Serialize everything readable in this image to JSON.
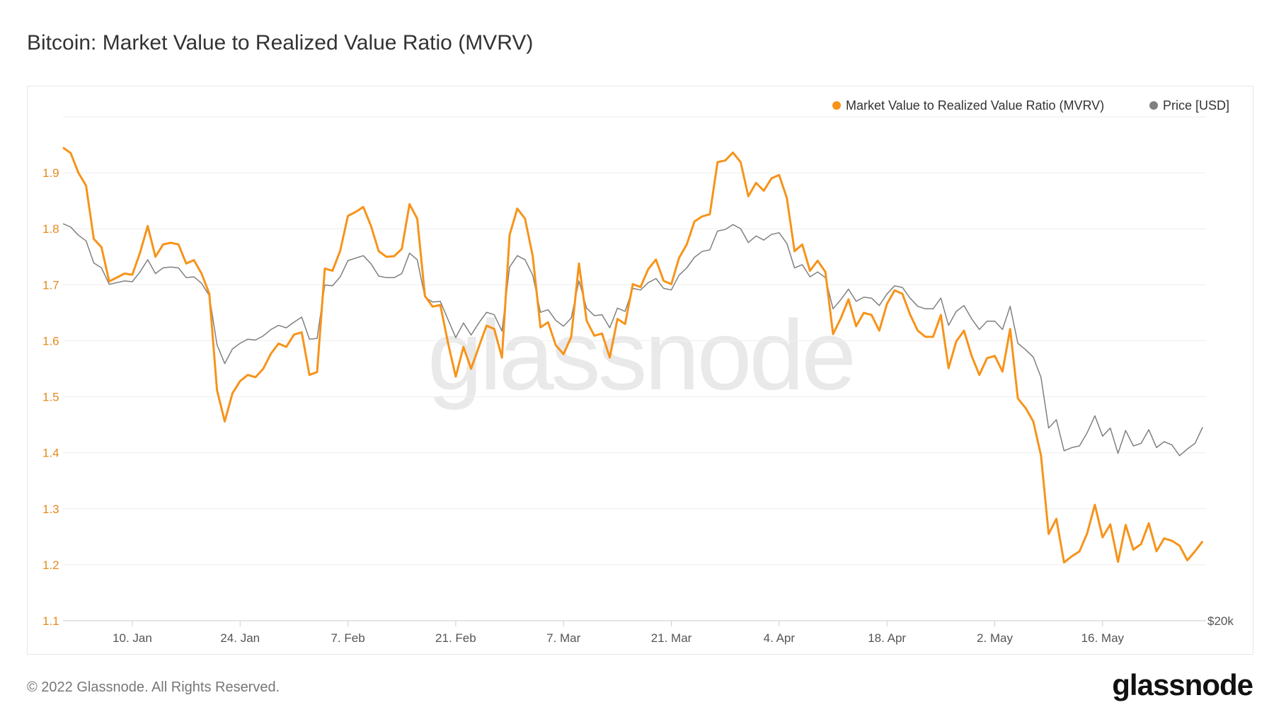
{
  "title": "Bitcoin: Market Value to Realized Value Ratio (MVRV)",
  "footer": "© 2022 Glassnode. All Rights Reserved.",
  "logo_text": "glassnode",
  "watermark_text": "glassnode",
  "colors": {
    "mvrv": "#f7931a",
    "price": "#808080",
    "mvrv_axis_text": "#e58a1c"
  },
  "chart_data": {
    "type": "line",
    "title": "Bitcoin: Market Value to Realized Value Ratio (MVRV)",
    "legend": {
      "placement": "top-right",
      "entries": [
        "Market Value to Realized Value Ratio (MVRV)",
        "Price [USD]"
      ]
    },
    "grid": true,
    "y_left": {
      "range": [
        1.1,
        2.0
      ],
      "ticks": [
        "1.1",
        "1.2",
        "1.3",
        "1.4",
        "1.5",
        "1.6",
        "1.7",
        "1.8",
        "1.9"
      ],
      "tick_values": [
        1.1,
        1.2,
        1.3,
        1.4,
        1.5,
        1.6,
        1.7,
        1.8,
        1.9
      ]
    },
    "y_right": {
      "scale": "log",
      "range": [
        20000,
        60000
      ],
      "ticks": [
        "$20k"
      ],
      "tick_values": [
        20000
      ]
    },
    "x_ticks": [
      {
        "label": "10. Jan",
        "date": "2022-01-10"
      },
      {
        "label": "24. Jan",
        "date": "2022-01-24"
      },
      {
        "label": "7. Feb",
        "date": "2022-02-07"
      },
      {
        "label": "21. Feb",
        "date": "2022-02-21"
      },
      {
        "label": "7. Mar",
        "date": "2022-03-07"
      },
      {
        "label": "21. Mar",
        "date": "2022-03-21"
      },
      {
        "label": "4. Apr",
        "date": "2022-04-04"
      },
      {
        "label": "18. Apr",
        "date": "2022-04-18"
      },
      {
        "label": "2. May",
        "date": "2022-05-02"
      },
      {
        "label": "16. May",
        "date": "2022-05-16"
      }
    ],
    "x": [
      "2022-01-01",
      "2022-01-02",
      "2022-01-03",
      "2022-01-04",
      "2022-01-05",
      "2022-01-06",
      "2022-01-07",
      "2022-01-08",
      "2022-01-09",
      "2022-01-10",
      "2022-01-11",
      "2022-01-12",
      "2022-01-13",
      "2022-01-14",
      "2022-01-15",
      "2022-01-16",
      "2022-01-17",
      "2022-01-18",
      "2022-01-19",
      "2022-01-20",
      "2022-01-21",
      "2022-01-22",
      "2022-01-23",
      "2022-01-24",
      "2022-01-25",
      "2022-01-26",
      "2022-01-27",
      "2022-01-28",
      "2022-01-29",
      "2022-01-30",
      "2022-01-31",
      "2022-02-01",
      "2022-02-02",
      "2022-02-03",
      "2022-02-04",
      "2022-02-05",
      "2022-02-06",
      "2022-02-07",
      "2022-02-08",
      "2022-02-09",
      "2022-02-10",
      "2022-02-11",
      "2022-02-12",
      "2022-02-13",
      "2022-02-14",
      "2022-02-15",
      "2022-02-16",
      "2022-02-17",
      "2022-02-18",
      "2022-02-19",
      "2022-02-20",
      "2022-02-21",
      "2022-02-22",
      "2022-02-23",
      "2022-02-24",
      "2022-02-25",
      "2022-02-26",
      "2022-02-27",
      "2022-02-28",
      "2022-03-01",
      "2022-03-02",
      "2022-03-03",
      "2022-03-04",
      "2022-03-05",
      "2022-03-06",
      "2022-03-07",
      "2022-03-08",
      "2022-03-09",
      "2022-03-10",
      "2022-03-11",
      "2022-03-12",
      "2022-03-13",
      "2022-03-14",
      "2022-03-15",
      "2022-03-16",
      "2022-03-17",
      "2022-03-18",
      "2022-03-19",
      "2022-03-20",
      "2022-03-21",
      "2022-03-22",
      "2022-03-23",
      "2022-03-24",
      "2022-03-25",
      "2022-03-26",
      "2022-03-27",
      "2022-03-28",
      "2022-03-29",
      "2022-03-30",
      "2022-03-31",
      "2022-04-01",
      "2022-04-02",
      "2022-04-03",
      "2022-04-04",
      "2022-04-05",
      "2022-04-06",
      "2022-04-07",
      "2022-04-08",
      "2022-04-09",
      "2022-04-10",
      "2022-04-11",
      "2022-04-12",
      "2022-04-13",
      "2022-04-14",
      "2022-04-15",
      "2022-04-16",
      "2022-04-17",
      "2022-04-18",
      "2022-04-19",
      "2022-04-20",
      "2022-04-21",
      "2022-04-22",
      "2022-04-23",
      "2022-04-24",
      "2022-04-25",
      "2022-04-26",
      "2022-04-27",
      "2022-04-28",
      "2022-04-29",
      "2022-04-30",
      "2022-05-01",
      "2022-05-02",
      "2022-05-03",
      "2022-05-04",
      "2022-05-05",
      "2022-05-06",
      "2022-05-07",
      "2022-05-08",
      "2022-05-09",
      "2022-05-10",
      "2022-05-11",
      "2022-05-12",
      "2022-05-13",
      "2022-05-14",
      "2022-05-15",
      "2022-05-16",
      "2022-05-17",
      "2022-05-18",
      "2022-05-19",
      "2022-05-20",
      "2022-05-21",
      "2022-05-22",
      "2022-05-23",
      "2022-05-24",
      "2022-05-25",
      "2022-05-26",
      "2022-05-27",
      "2022-05-28",
      "2022-05-29"
    ],
    "series": [
      {
        "name": "Market Value to Realized Value Ratio (MVRV)",
        "axis": "left",
        "color": "#f7931a",
        "values": [
          1.945,
          1.935,
          1.9,
          1.877,
          1.782,
          1.767,
          1.706,
          1.713,
          1.72,
          1.718,
          1.757,
          1.805,
          1.75,
          1.772,
          1.775,
          1.772,
          1.738,
          1.744,
          1.72,
          1.684,
          1.512,
          1.456,
          1.506,
          1.528,
          1.539,
          1.535,
          1.55,
          1.577,
          1.595,
          1.589,
          1.611,
          1.615,
          1.539,
          1.544,
          1.729,
          1.725,
          1.761,
          1.823,
          1.83,
          1.839,
          1.805,
          1.76,
          1.75,
          1.751,
          1.764,
          1.844,
          1.818,
          1.68,
          1.661,
          1.664,
          1.596,
          1.536,
          1.589,
          1.55,
          1.589,
          1.627,
          1.621,
          1.57,
          1.789,
          1.836,
          1.818,
          1.751,
          1.624,
          1.633,
          1.592,
          1.576,
          1.607,
          1.738,
          1.636,
          1.609,
          1.613,
          1.57,
          1.639,
          1.63,
          1.701,
          1.696,
          1.728,
          1.745,
          1.707,
          1.701,
          1.748,
          1.772,
          1.813,
          1.822,
          1.826,
          1.919,
          1.922,
          1.936,
          1.919,
          1.858,
          1.882,
          1.868,
          1.89,
          1.896,
          1.855,
          1.76,
          1.772,
          1.725,
          1.743,
          1.723,
          1.612,
          1.64,
          1.674,
          1.626,
          1.65,
          1.646,
          1.618,
          1.666,
          1.69,
          1.684,
          1.647,
          1.618,
          1.607,
          1.607,
          1.646,
          1.551,
          1.599,
          1.618,
          1.573,
          1.539,
          1.569,
          1.573,
          1.545,
          1.621,
          1.497,
          1.48,
          1.456,
          1.395,
          1.255,
          1.282,
          1.204,
          1.215,
          1.224,
          1.256,
          1.307,
          1.249,
          1.272,
          1.205,
          1.271,
          1.227,
          1.237,
          1.274,
          1.224,
          1.247,
          1.243,
          1.234,
          1.208,
          1.224,
          1.242
        ]
      },
      {
        "name": "Price [USD]",
        "axis": "right",
        "color": "#808080",
        "values": [
          47520,
          47180,
          46350,
          45780,
          43630,
          43160,
          41650,
          41800,
          41950,
          41880,
          42780,
          43940,
          42630,
          43160,
          43240,
          43160,
          42250,
          42330,
          41730,
          40630,
          36500,
          35040,
          36170,
          36620,
          36950,
          36880,
          37210,
          37740,
          38080,
          37880,
          38350,
          38770,
          36950,
          37010,
          41580,
          41510,
          42330,
          43860,
          44090,
          44330,
          43550,
          42400,
          42250,
          42250,
          42630,
          44570,
          43940,
          40490,
          40060,
          40130,
          38560,
          37080,
          38280,
          37280,
          38280,
          39180,
          38970,
          37610,
          43240,
          44330,
          43940,
          42480,
          39180,
          39400,
          38490,
          38010,
          38700,
          41950,
          39540,
          38900,
          38970,
          37880,
          39540,
          39260,
          41280,
          41130,
          41800,
          42170,
          41280,
          41130,
          42480,
          43160,
          44170,
          44730,
          44890,
          46770,
          46930,
          47440,
          47010,
          45610,
          46270,
          45860,
          46430,
          46600,
          45530,
          43160,
          43470,
          42330,
          42780,
          42250,
          39480,
          40270,
          41210,
          40130,
          40490,
          40410,
          39760,
          40780,
          41510,
          41360,
          40410,
          39690,
          39480,
          39480,
          40410,
          38080,
          39260,
          39760,
          38630,
          37740,
          38430,
          38430,
          37740,
          39690,
          36620,
          36110,
          35530,
          34000,
          30440,
          31000,
          28970,
          29170,
          29280,
          30130,
          31270,
          29910,
          30440,
          28810,
          30280,
          29280,
          29440,
          30330,
          29170,
          29550,
          29340,
          28660,
          29080,
          29440,
          30500
        ]
      }
    ]
  }
}
